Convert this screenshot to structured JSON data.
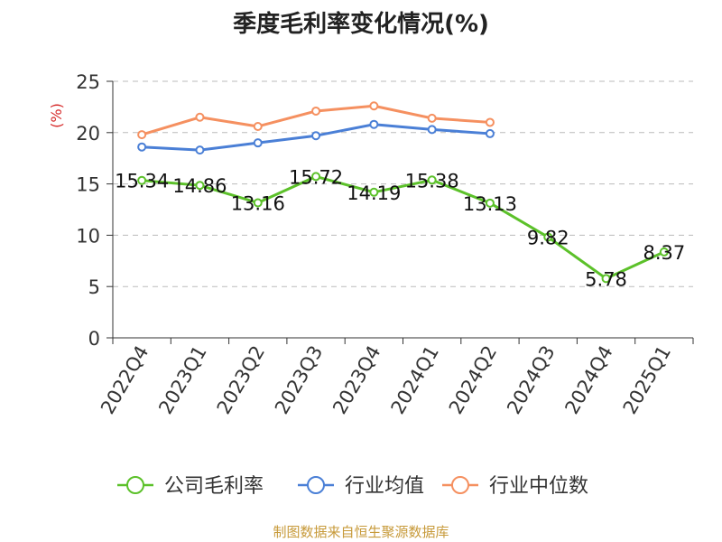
{
  "chart_data": {
    "type": "line",
    "title": "季度毛利率变化情况(%)",
    "ylabel": "(%)",
    "xlabel": "",
    "ylim": [
      0,
      25
    ],
    "yticks": [
      0,
      5,
      10,
      15,
      20,
      25
    ],
    "grid": true,
    "legend_position": "bottom",
    "categories": [
      "2022Q4",
      "2023Q1",
      "2023Q2",
      "2023Q3",
      "2023Q4",
      "2024Q1",
      "2024Q2",
      "2024Q3",
      "2024Q4",
      "2025Q1"
    ],
    "series": [
      {
        "name": "公司毛利率",
        "color": "#5cc12a",
        "values": [
          15.34,
          14.86,
          13.16,
          15.72,
          14.19,
          15.38,
          13.13,
          9.82,
          5.78,
          8.37
        ],
        "labels": [
          "15.34",
          "14.86",
          "13.16",
          "15.72",
          "14.19",
          "15.38",
          "13.13",
          "9.82",
          "5.78",
          "8.37"
        ]
      },
      {
        "name": "行业均值",
        "color": "#4a7fd6",
        "values": [
          18.6,
          18.3,
          19.0,
          19.7,
          20.8,
          20.3,
          19.9,
          null,
          null,
          null
        ]
      },
      {
        "name": "行业中位数",
        "color": "#f59060",
        "values": [
          19.8,
          21.5,
          20.6,
          22.1,
          22.6,
          21.4,
          21.0,
          null,
          null,
          null
        ]
      }
    ]
  },
  "footer": {
    "source": "制图数据来自恒生聚源数据库"
  }
}
